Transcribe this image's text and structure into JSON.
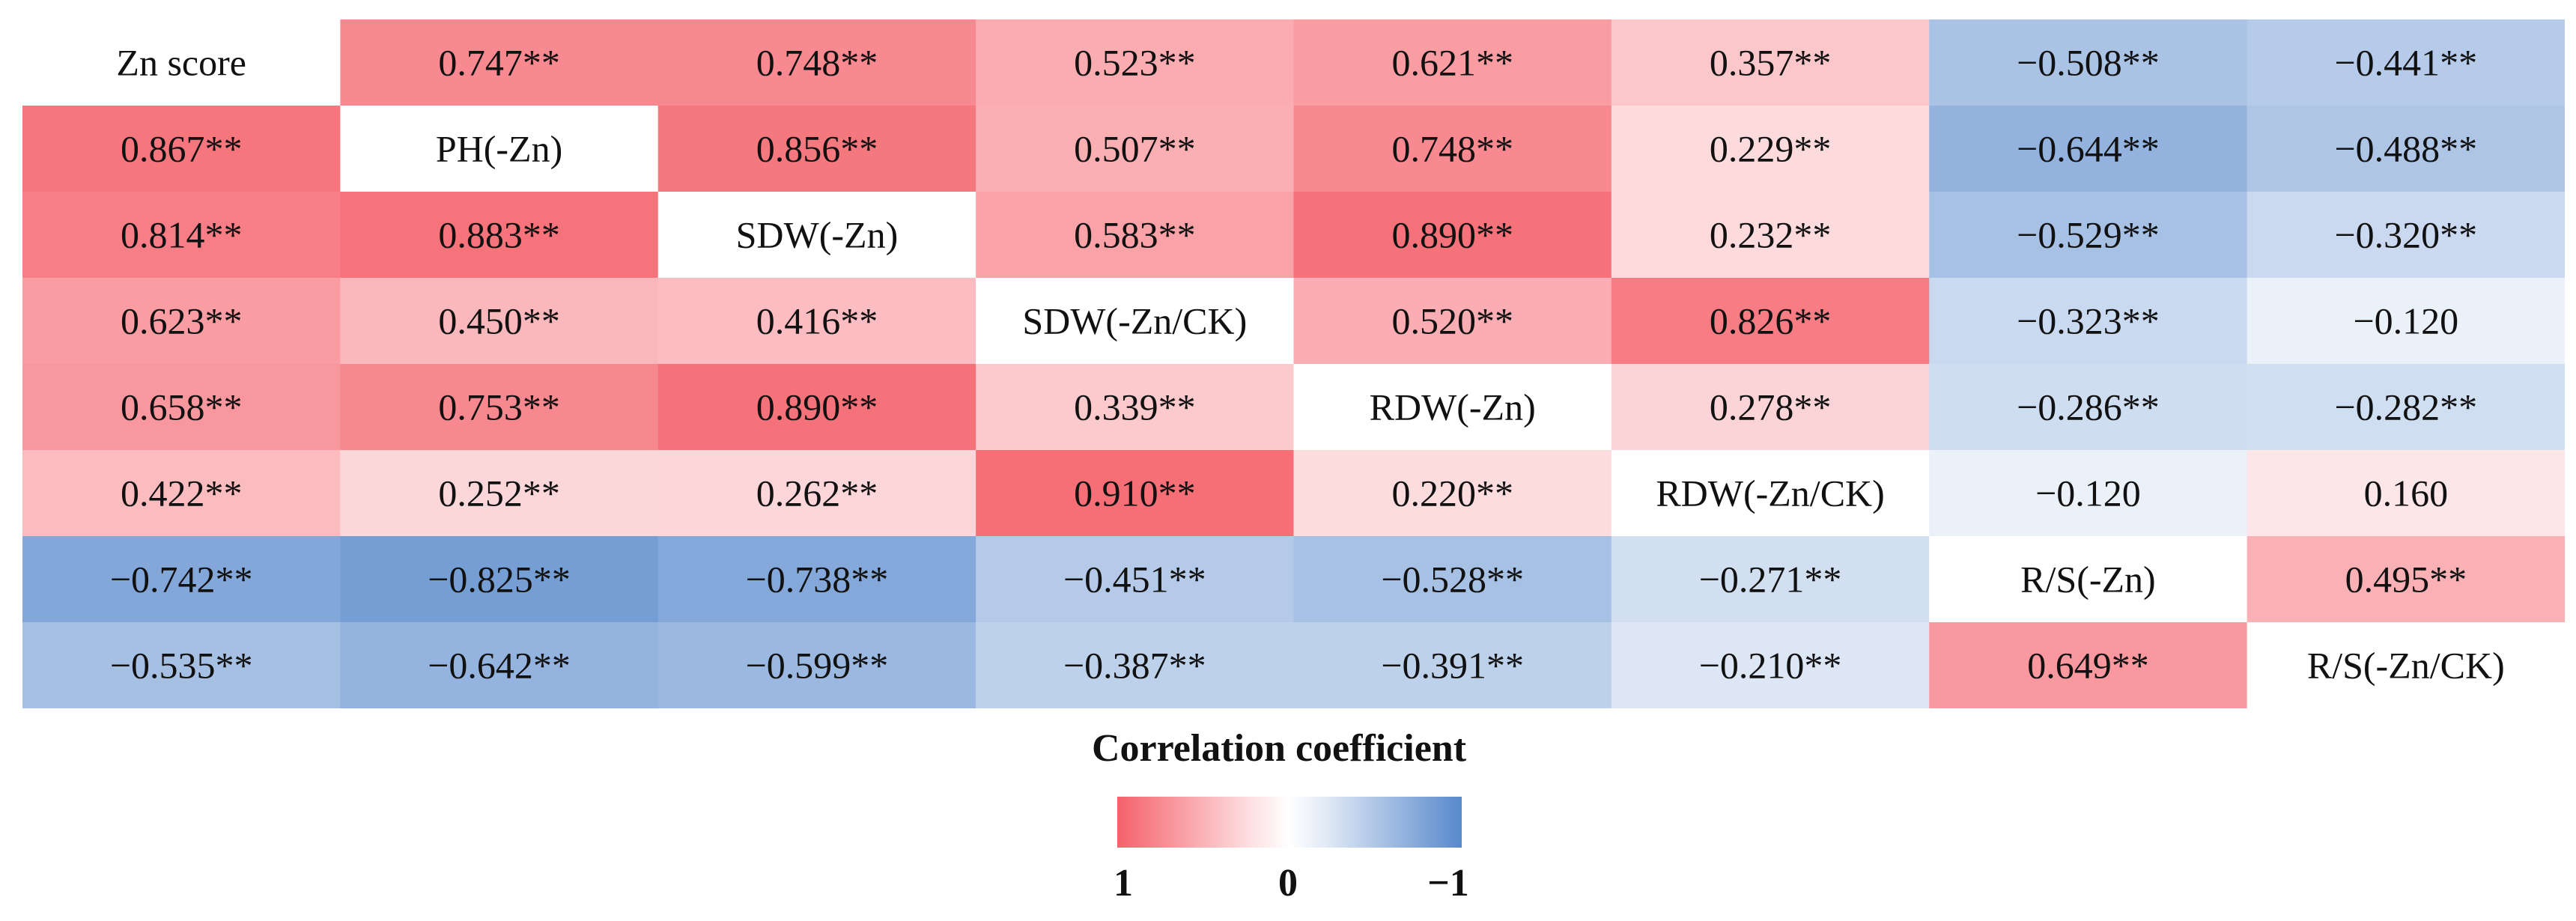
{
  "chart_data": {
    "type": "heatmap",
    "title": "",
    "variables": [
      "Zn score",
      "PH(-Zn)",
      "SDW(-Zn)",
      "SDW(-Zn/CK)",
      "RDW(-Zn)",
      "RDW(-Zn/CK)",
      "R/S(-Zn)",
      "R/S(-Zn/CK)"
    ],
    "value_labels": [
      [
        null,
        "0.747**",
        "0.748**",
        "0.523**",
        "0.621**",
        "0.357**",
        "−0.508**",
        "−0.441**"
      ],
      [
        "0.867**",
        null,
        "0.856**",
        "0.507**",
        "0.748**",
        "0.229**",
        "−0.644**",
        "−0.488**"
      ],
      [
        "0.814**",
        "0.883**",
        null,
        "0.583**",
        "0.890**",
        "0.232**",
        "−0.529**",
        "−0.320**"
      ],
      [
        "0.623**",
        "0.450**",
        "0.416**",
        null,
        "0.520**",
        "0.826**",
        "−0.323**",
        "−0.120"
      ],
      [
        "0.658**",
        "0.753**",
        "0.890**",
        "0.339**",
        null,
        "0.278**",
        "−0.286**",
        "−0.282**"
      ],
      [
        "0.422**",
        "0.252**",
        "0.262**",
        "0.910**",
        "0.220**",
        null,
        "−0.120",
        "0.160"
      ],
      [
        "−0.742**",
        "−0.825**",
        "−0.738**",
        "−0.451**",
        "−0.528**",
        "−0.271**",
        null,
        "0.495**"
      ],
      [
        "−0.535**",
        "−0.642**",
        "−0.599**",
        "−0.387**",
        "−0.391**",
        "−0.210**",
        "0.649**",
        null
      ]
    ],
    "values": [
      [
        null,
        0.747,
        0.748,
        0.523,
        0.621,
        0.357,
        -0.508,
        -0.441
      ],
      [
        0.867,
        null,
        0.856,
        0.507,
        0.748,
        0.229,
        -0.644,
        -0.488
      ],
      [
        0.814,
        0.883,
        null,
        0.583,
        0.89,
        0.232,
        -0.529,
        -0.32
      ],
      [
        0.623,
        0.45,
        0.416,
        null,
        0.52,
        0.826,
        -0.323,
        -0.12
      ],
      [
        0.658,
        0.753,
        0.89,
        0.339,
        null,
        0.278,
        -0.286,
        -0.282
      ],
      [
        0.422,
        0.252,
        0.262,
        0.91,
        0.22,
        null,
        -0.12,
        0.16
      ],
      [
        -0.742,
        -0.825,
        -0.738,
        -0.451,
        -0.528,
        -0.271,
        null,
        0.495
      ],
      [
        -0.535,
        -0.642,
        -0.599,
        -0.387,
        -0.391,
        -0.21,
        0.649,
        null
      ]
    ],
    "color_scale": {
      "positive": "#f5616a",
      "zero": "#ffffff",
      "negative": "#5889cc",
      "range": [
        -1,
        1
      ]
    },
    "legend": {
      "title": "Correlation coefficient",
      "tick_labels": [
        "1",
        "0",
        "−1"
      ]
    }
  }
}
